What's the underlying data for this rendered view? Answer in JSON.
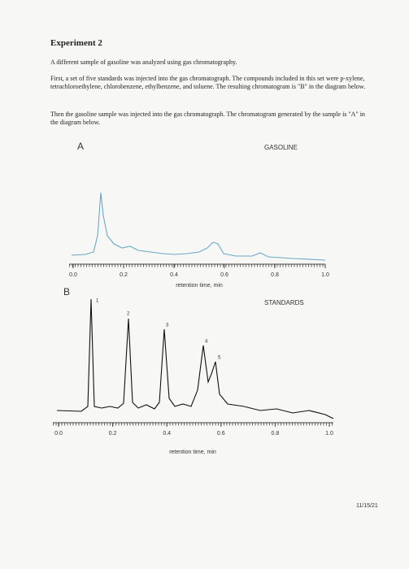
{
  "document": {
    "title": "Experiment 2",
    "paragraphs": [
      "A different sample of gasoline was analyzed using gas chromatography.",
      "First, a set of five standards was injected into the gas chromatograph. The compounds included in this set were p-xylene, tetrachloroethylene, chlorobenzene, ethylbenzene, and toluene. The resulting chromatogram is \"B\" in the diagram below.",
      "Then the gasoline sample was injected into the gas chromatograph. The chromatogram generated by the sample is \"A\" in the diagram below."
    ],
    "figure_a": {
      "label": "A",
      "title": "GASOLINE",
      "xlabel": "retention time, min",
      "xlim": [
        0,
        1
      ],
      "xticks": [
        {
          "value": 0,
          "label": "0.0"
        },
        0.2,
        0.4,
        0.6,
        0.8,
        {
          "value": 1,
          "label": "1.0"
        }
      ]
    },
    "figure_b": {
      "label": "B",
      "title": "STANDARDS",
      "xlabel": "retention time, min",
      "xlim": [
        0,
        1
      ],
      "xticks": [
        {
          "value": 0,
          "label": "0.0"
        },
        0.2,
        0.4,
        0.6,
        0.8,
        {
          "value": 1,
          "label": "1.0"
        }
      ],
      "peak_labels": [
        "1",
        "2",
        "3",
        "4",
        "5"
      ]
    },
    "date": "11/15/21"
  }
}
